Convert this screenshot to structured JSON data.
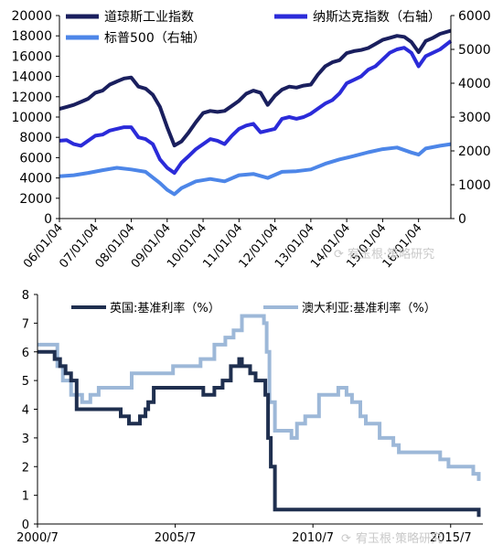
{
  "chart_data": [
    {
      "type": "line",
      "x_ticks": [
        "06/01/04",
        "07/01/04",
        "08/01/04",
        "09/01/04",
        "10/01/04",
        "11/01/04",
        "12/01/04",
        "13/01/04",
        "14/01/04",
        "15/01/04",
        "16/01/04"
      ],
      "ylim_left": [
        0,
        20000
      ],
      "ylim_right": [
        0,
        6000
      ],
      "yticks_left": [
        "0",
        "2000",
        "4000",
        "6000",
        "8000",
        "10000",
        "12000",
        "14000",
        "16000",
        "18000",
        "20000"
      ],
      "yticks_right": [
        "0",
        "1000",
        "2000",
        "3000",
        "4000",
        "5000",
        "6000"
      ],
      "grid": false,
      "legend": "top",
      "series": [
        {
          "name": "道琼斯工业指数",
          "axis": "left",
          "color": "#1a1f5e",
          "x": [
            2006.0,
            2006.2,
            2006.4,
            2006.6,
            2006.8,
            2007.0,
            2007.2,
            2007.4,
            2007.6,
            2007.8,
            2008.0,
            2008.2,
            2008.4,
            2008.6,
            2008.8,
            2009.0,
            2009.2,
            2009.4,
            2009.6,
            2009.8,
            2010.0,
            2010.2,
            2010.4,
            2010.6,
            2010.8,
            2011.0,
            2011.2,
            2011.4,
            2011.6,
            2011.8,
            2012.0,
            2012.2,
            2012.4,
            2012.6,
            2012.8,
            2013.0,
            2013.2,
            2013.4,
            2013.6,
            2013.8,
            2014.0,
            2014.2,
            2014.4,
            2014.6,
            2014.8,
            2015.0,
            2015.2,
            2015.4,
            2015.6,
            2015.8,
            2016.0,
            2016.2,
            2016.4,
            2016.6,
            2016.9
          ],
          "values": [
            10800,
            11000,
            11200,
            11500,
            11800,
            12400,
            12600,
            13200,
            13500,
            13800,
            13900,
            13000,
            12800,
            12200,
            11000,
            9000,
            7200,
            7600,
            8500,
            9500,
            10400,
            10600,
            10500,
            10600,
            11100,
            11600,
            12300,
            12600,
            12400,
            11200,
            12100,
            12700,
            13000,
            12900,
            13100,
            13200,
            14200,
            15000,
            15400,
            15600,
            16300,
            16500,
            16600,
            16800,
            17200,
            17600,
            17800,
            18000,
            17900,
            17400,
            16400,
            17500,
            17800,
            18200,
            18500
          ]
        },
        {
          "name": "纳斯达克指数（右轴）",
          "axis": "right",
          "color": "#2b2bd9",
          "x": [
            2006.0,
            2006.2,
            2006.4,
            2006.6,
            2006.8,
            2007.0,
            2007.2,
            2007.4,
            2007.6,
            2007.8,
            2008.0,
            2008.2,
            2008.4,
            2008.6,
            2008.8,
            2009.0,
            2009.2,
            2009.4,
            2009.6,
            2009.8,
            2010.0,
            2010.2,
            2010.4,
            2010.6,
            2010.8,
            2011.0,
            2011.2,
            2011.4,
            2011.6,
            2011.8,
            2012.0,
            2012.2,
            2012.4,
            2012.6,
            2012.8,
            2013.0,
            2013.2,
            2013.4,
            2013.6,
            2013.8,
            2014.0,
            2014.2,
            2014.4,
            2014.6,
            2014.8,
            2015.0,
            2015.2,
            2015.4,
            2015.6,
            2015.8,
            2016.0,
            2016.2,
            2016.4,
            2016.6,
            2016.9
          ],
          "values": [
            2300,
            2320,
            2200,
            2150,
            2300,
            2450,
            2480,
            2600,
            2650,
            2700,
            2700,
            2400,
            2350,
            2200,
            1750,
            1500,
            1350,
            1650,
            1850,
            2050,
            2200,
            2350,
            2300,
            2200,
            2450,
            2650,
            2750,
            2800,
            2550,
            2600,
            2650,
            2950,
            3000,
            2950,
            3000,
            3100,
            3250,
            3400,
            3500,
            3700,
            4000,
            4100,
            4200,
            4400,
            4500,
            4700,
            4900,
            5000,
            5050,
            4900,
            4500,
            4800,
            4900,
            5000,
            5250
          ]
        },
        {
          "name": "标普500（右轴）",
          "axis": "right",
          "color": "#4d86e8",
          "x": [
            2006.0,
            2006.4,
            2006.8,
            2007.2,
            2007.6,
            2008.0,
            2008.4,
            2008.8,
            2009.0,
            2009.2,
            2009.4,
            2009.8,
            2010.2,
            2010.6,
            2011.0,
            2011.4,
            2011.8,
            2012.2,
            2012.6,
            2013.0,
            2013.4,
            2013.8,
            2014.2,
            2014.6,
            2015.0,
            2015.4,
            2015.8,
            2016.0,
            2016.2,
            2016.6,
            2016.9
          ],
          "values": [
            1250,
            1280,
            1350,
            1430,
            1500,
            1450,
            1380,
            1050,
            850,
            720,
            900,
            1100,
            1170,
            1100,
            1280,
            1320,
            1200,
            1380,
            1400,
            1450,
            1620,
            1750,
            1850,
            1960,
            2050,
            2100,
            1950,
            1890,
            2070,
            2150,
            2200
          ]
        }
      ]
    },
    {
      "type": "line",
      "x_ticks": [
        "2000/7",
        "2005/7",
        "2010/7",
        "2015/7"
      ],
      "ylim": [
        0,
        8
      ],
      "yticks": [
        "0",
        "1",
        "2",
        "3",
        "4",
        "5",
        "6",
        "7",
        "8"
      ],
      "grid": false,
      "legend": "top",
      "series": [
        {
          "name": "英国:基准利率（%）",
          "color": "#1f2f4f",
          "x": [
            2000.58,
            2001.0,
            2001.2,
            2001.4,
            2001.6,
            2001.8,
            2002.0,
            2003.5,
            2003.6,
            2003.9,
            2004.3,
            2004.5,
            2004.6,
            2004.8,
            2005.6,
            2006.6,
            2007.0,
            2007.3,
            2007.6,
            2007.9,
            2008.0,
            2008.3,
            2008.5,
            2008.8,
            2008.85,
            2008.95,
            2009.05,
            2009.2,
            2015.75,
            2016.6,
            2016.6
          ],
          "values": [
            6.0,
            6.0,
            5.75,
            5.5,
            5.25,
            5.0,
            4.0,
            4.0,
            3.75,
            3.5,
            3.75,
            4.0,
            4.25,
            4.75,
            4.75,
            4.5,
            4.75,
            5.0,
            5.5,
            5.75,
            5.5,
            5.25,
            5.0,
            5.0,
            4.5,
            3.0,
            2.0,
            0.5,
            0.5,
            0.5,
            0.25
          ]
        },
        {
          "name": "澳大利亚:基准利率（%）",
          "color": "#9db8d8",
          "x": [
            2000.58,
            2001.0,
            2001.3,
            2001.5,
            2001.8,
            2002.2,
            2002.5,
            2002.8,
            2003.0,
            2003.9,
            2004.0,
            2005.0,
            2005.5,
            2006.0,
            2006.5,
            2007.0,
            2007.4,
            2007.7,
            2008.0,
            2008.8,
            2008.9,
            2009.0,
            2009.2,
            2009.8,
            2010.0,
            2010.3,
            2010.8,
            2011.5,
            2011.8,
            2012.0,
            2012.3,
            2012.5,
            2013.0,
            2013.5,
            2013.7,
            2015.2,
            2015.5,
            2016.0,
            2016.4,
            2016.6
          ],
          "values": [
            6.25,
            6.25,
            5.5,
            5.0,
            4.5,
            4.25,
            4.5,
            4.75,
            4.75,
            4.75,
            5.25,
            5.25,
            5.5,
            5.5,
            5.75,
            6.25,
            6.5,
            6.75,
            7.25,
            7.0,
            6.0,
            4.25,
            3.25,
            3.0,
            3.5,
            3.75,
            4.5,
            4.75,
            4.5,
            4.25,
            3.75,
            3.5,
            3.0,
            2.75,
            2.5,
            2.25,
            2.0,
            2.0,
            1.75,
            1.5
          ]
        }
      ]
    }
  ],
  "watermarks": [
    "宥玉根·策略研究",
    "宥玉根·策略研究"
  ]
}
